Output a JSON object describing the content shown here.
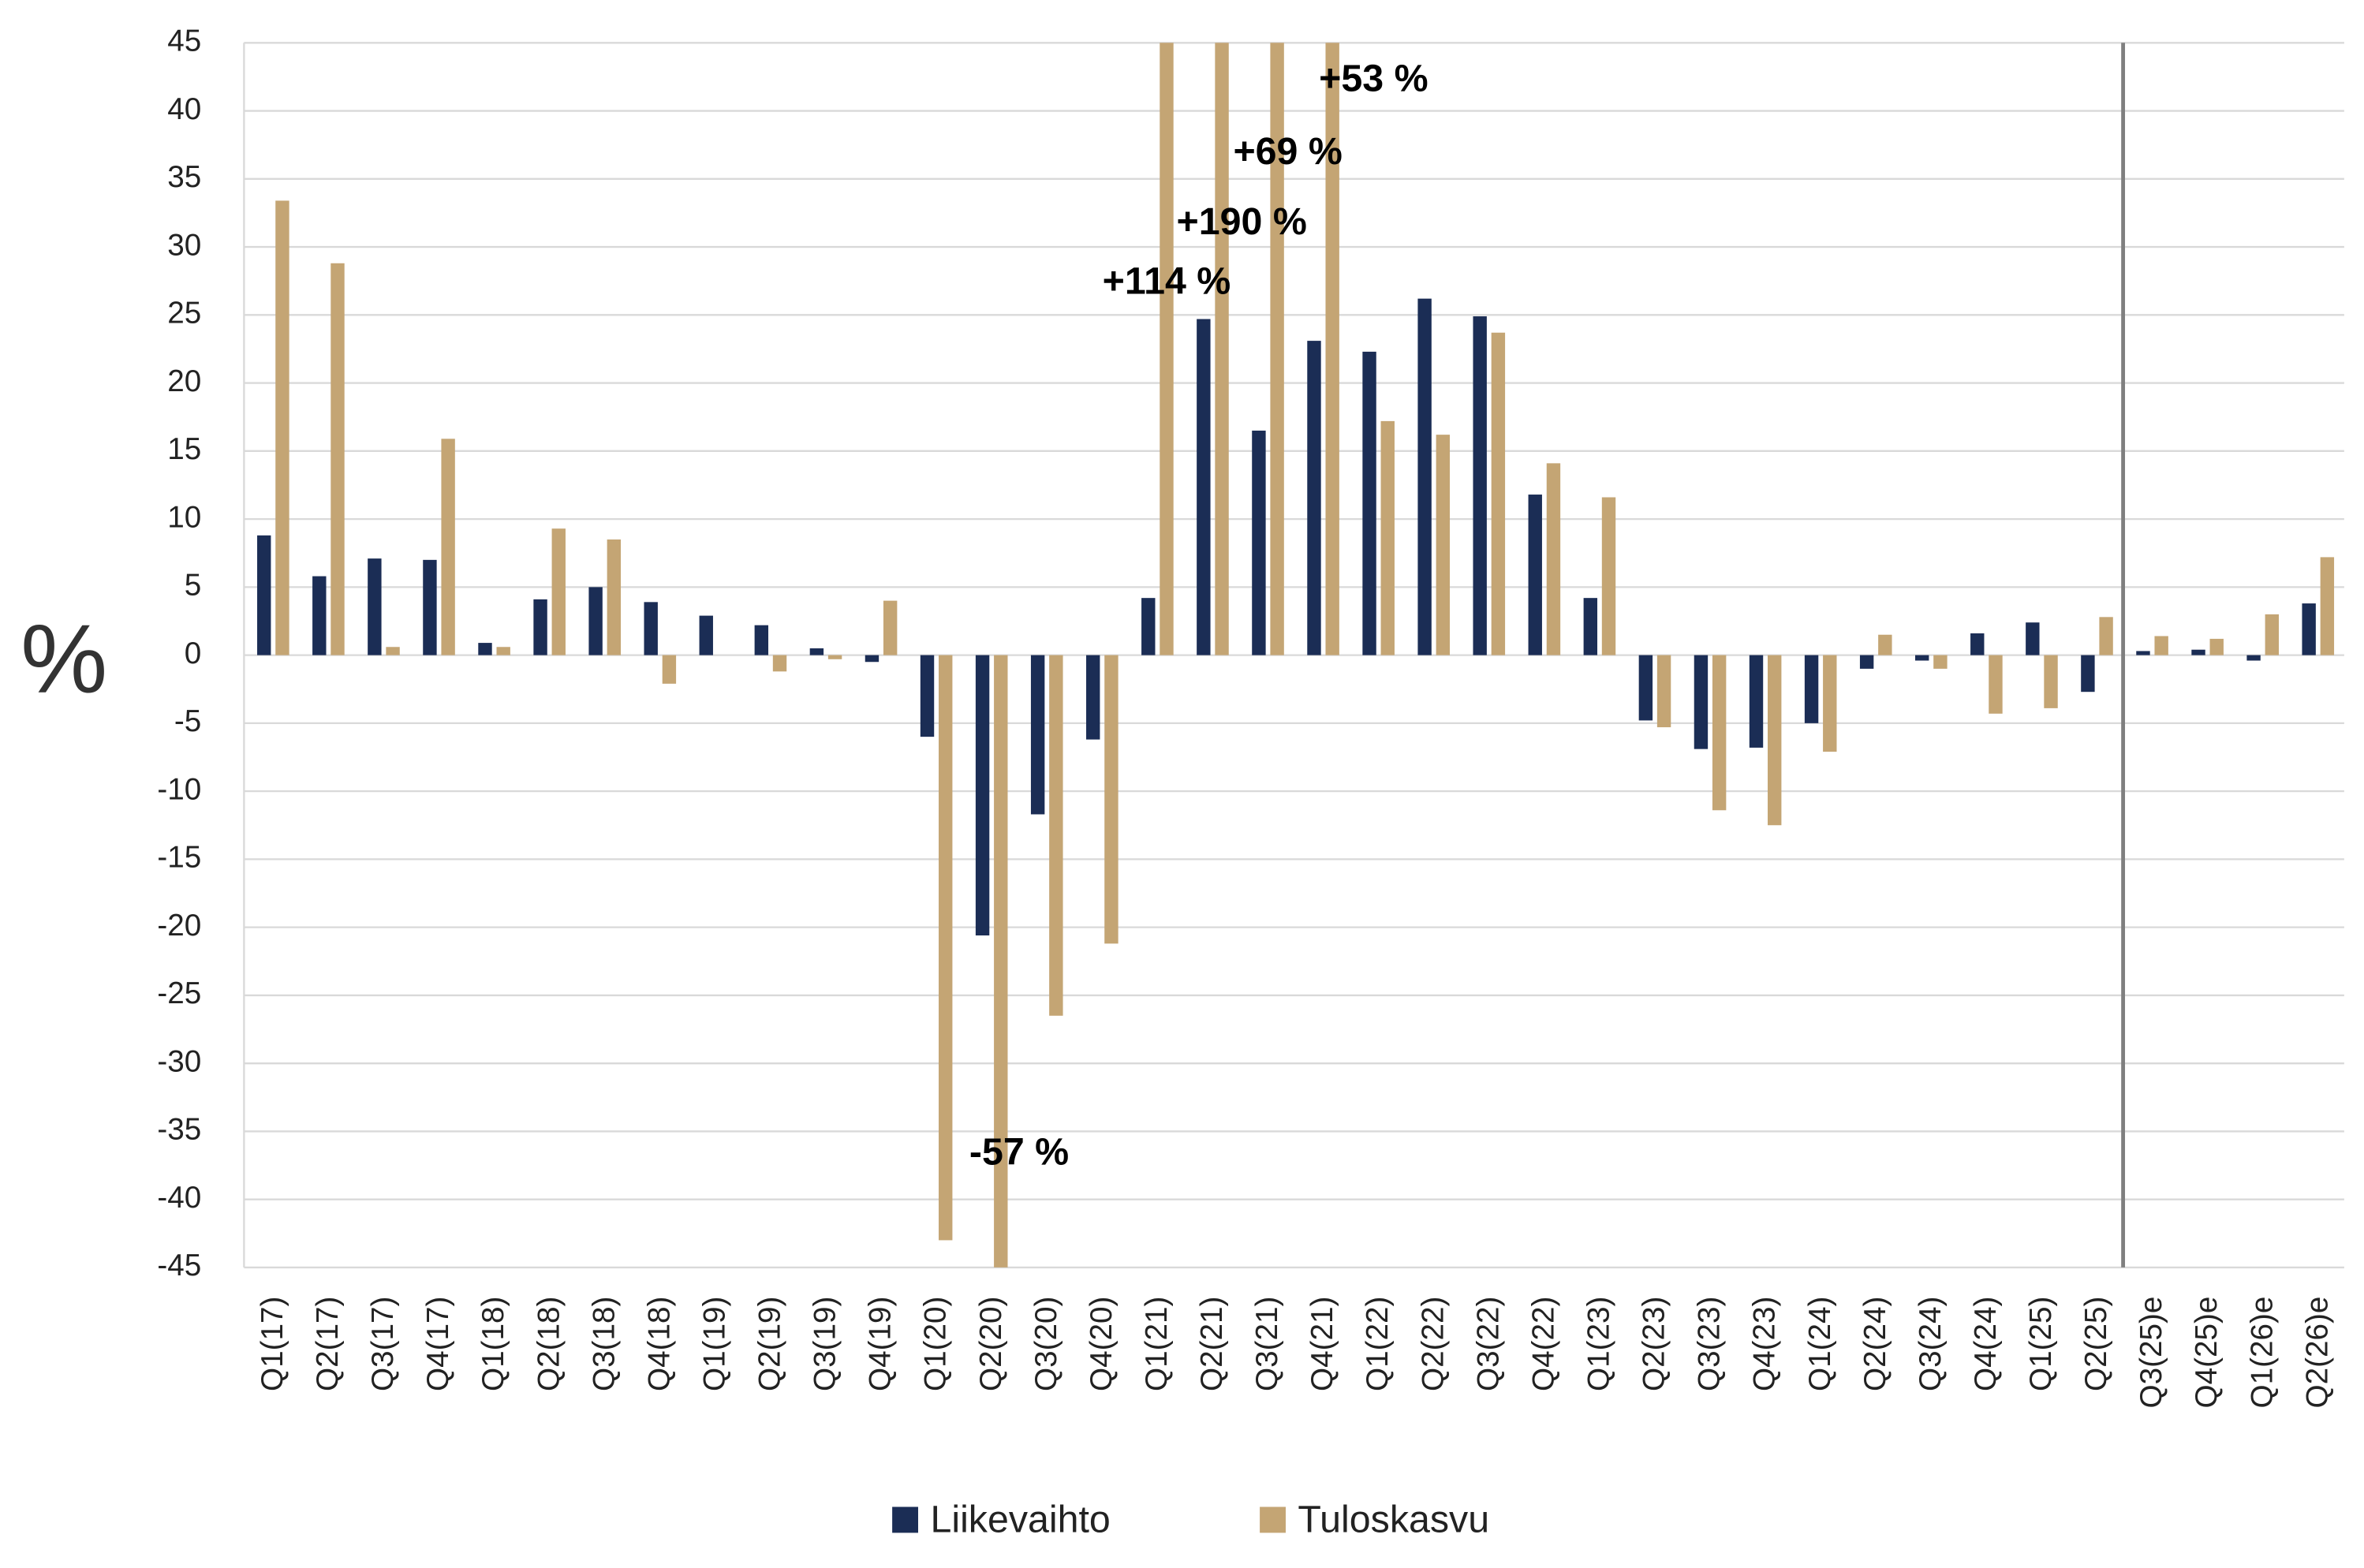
{
  "chart_data": {
    "type": "bar",
    "y_label": "%",
    "categories": [
      "Q1(17)",
      "Q2(17)",
      "Q3(17)",
      "Q4(17)",
      "Q1(18)",
      "Q2(18)",
      "Q3(18)",
      "Q4(18)",
      "Q1(19)",
      "Q2(19)",
      "Q3(19)",
      "Q4(19)",
      "Q1(20)",
      "Q2(20)",
      "Q3(20)",
      "Q4(20)",
      "Q1(21)",
      "Q2(21)",
      "Q3(21)",
      "Q4(21)",
      "Q1(22)",
      "Q2(22)",
      "Q3(22)",
      "Q4(22)",
      "Q1(23)",
      "Q2(23)",
      "Q3(23)",
      "Q4(23)",
      "Q1(24)",
      "Q2(24)",
      "Q3(24)",
      "Q4(24)",
      "Q1(25)",
      "Q2(25)",
      "Q3(25)e",
      "Q4(25)e",
      "Q1(26)e",
      "Q2(26)e"
    ],
    "series": [
      {
        "name": "Liikevaihto",
        "color": "#1b2d55",
        "values": [
          8.8,
          5.8,
          7.1,
          7.0,
          0.9,
          4.1,
          5.0,
          3.9,
          2.9,
          2.2,
          0.5,
          -0.5,
          -6.0,
          -20.6,
          -11.7,
          -6.2,
          4.2,
          24.7,
          16.5,
          23.1,
          22.3,
          26.2,
          24.9,
          11.8,
          4.2,
          -4.8,
          -6.9,
          -6.8,
          -5.0,
          -1.0,
          -0.4,
          1.6,
          2.4,
          -2.7,
          0.3,
          0.4,
          -0.4,
          3.8
        ]
      },
      {
        "name": "Tuloskasvu",
        "color": "#c4a574",
        "values": [
          33.4,
          28.8,
          0.6,
          15.9,
          0.6,
          9.3,
          8.5,
          -2.1,
          0,
          -1.2,
          -0.3,
          4.0,
          -43,
          -57,
          -26.5,
          -21.2,
          114,
          190,
          69,
          53,
          17.2,
          16.2,
          23.7,
          14.1,
          11.6,
          -5.3,
          -11.4,
          -12.5,
          -7.1,
          1.5,
          -1.0,
          -4.3,
          -3.9,
          2.8,
          1.4,
          1.2,
          3.0,
          7.2
        ],
        "value_labels": [
          null,
          null,
          null,
          null,
          null,
          null,
          null,
          null,
          null,
          null,
          null,
          null,
          null,
          "-57 %",
          null,
          null,
          "+114 %",
          "+190 %",
          "+69 %",
          "+53 %",
          null,
          null,
          null,
          null,
          null,
          null,
          null,
          null,
          null,
          null,
          null,
          null,
          null,
          null,
          null,
          null,
          null,
          null
        ]
      }
    ],
    "ylim": [
      -45,
      45
    ],
    "yticks": [
      -45,
      -40,
      -35,
      -30,
      -25,
      -20,
      -15,
      -10,
      -5,
      0,
      5,
      10,
      15,
      20,
      25,
      30,
      35,
      40,
      45
    ],
    "grid": true,
    "legend": "bottom"
  }
}
